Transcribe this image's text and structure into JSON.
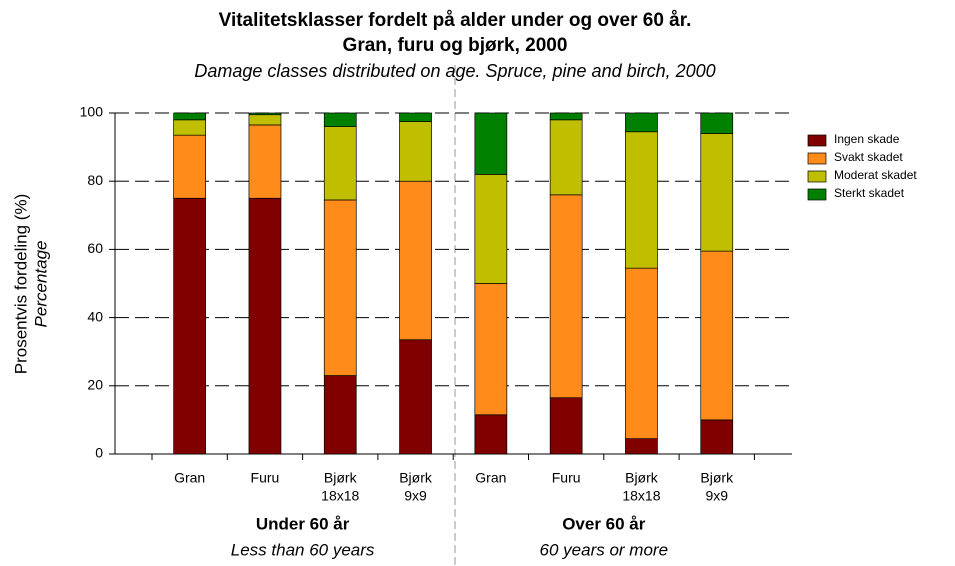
{
  "chart_data": {
    "type": "stacked_bar",
    "title": [
      "Vitalitetsklasser fordelt på alder under og over 60 år.",
      "Gran, furu og bjørk, 2000"
    ],
    "subtitle": "Damage classes distributed on age. Spruce, pine and birch, 2000",
    "y_label": "Prosentvis fordeling (%)",
    "y_label_en": "Percentage",
    "categories": [
      [
        "Gran"
      ],
      [
        "Furu"
      ],
      [
        "Bjørk",
        "18x18"
      ],
      [
        "Bjørk",
        "9x9"
      ],
      [
        "Gran"
      ],
      [
        "Furu"
      ],
      [
        "Bjørk",
        "18x18"
      ],
      [
        "Bjørk",
        "9x9"
      ]
    ],
    "groups": [
      {
        "label": "Under 60 år",
        "sublabel": "Less than 60 years"
      },
      {
        "label": "Over 60 år",
        "sublabel": "60 years or more"
      }
    ],
    "series": [
      {
        "name": "Ingen skade",
        "color": "#800000",
        "values": [
          75,
          75,
          23,
          33.5,
          11.5,
          16.5,
          4.5,
          10
        ]
      },
      {
        "name": "Svakt skadet",
        "color": "#ff8c1a",
        "values": [
          18.5,
          21.5,
          51.5,
          46.5,
          38.5,
          59.5,
          50,
          49.5
        ]
      },
      {
        "name": "Moderat skadet",
        "color": "#bfbf00",
        "values": [
          4.5,
          3,
          21.5,
          17.5,
          32,
          22,
          40,
          34.5
        ]
      },
      {
        "name": "Sterkt skadet",
        "color": "#008000",
        "values": [
          2,
          0.5,
          4,
          2.5,
          18,
          2,
          5.5,
          6
        ]
      }
    ],
    "ylim": [
      0,
      100
    ],
    "yticks": [
      0,
      20,
      40,
      60,
      80,
      100
    ],
    "grid": true,
    "legend": "right"
  }
}
